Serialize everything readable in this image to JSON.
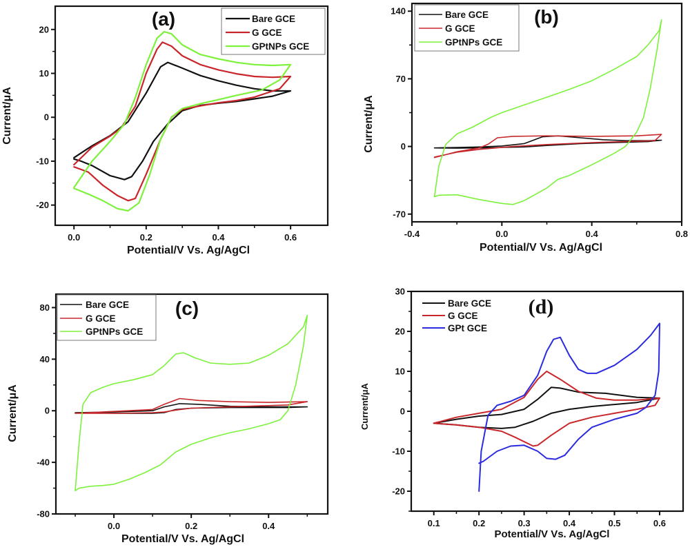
{
  "figure": {
    "description": "Cyclic voltammograms of Bare GCE, G GCE and GPt/GPtNPs GCE in four panels"
  },
  "colors": {
    "bare": "#111111",
    "g": "#c8262a",
    "gptnps": "#7cf23a",
    "gpt": "#2a2adf"
  },
  "chart_data": [
    {
      "panel": "(a)",
      "type": "line",
      "xlabel": "Potential/V Vs. Ag/AgCl",
      "ylabel": "Current/μA",
      "xlim": [
        -0.052,
        0.703
      ],
      "ylim": [
        -24.6,
        25.3
      ],
      "xticks": [
        0.0,
        0.2,
        0.4,
        0.6
      ],
      "xtick_labels": [
        "0.0",
        "0.2",
        "0.4",
        "0.6"
      ],
      "xminor": [
        0.1,
        0.3,
        0.5
      ],
      "yticks": [
        20,
        10,
        0,
        -10,
        -20
      ],
      "ytick_labels": [
        "20",
        "10",
        "0",
        "-10",
        "-20"
      ],
      "yminor": [
        15,
        5,
        -5,
        -15
      ],
      "legend": {
        "placement": "top-right",
        "boxed": true,
        "entries": [
          "Bare GCE",
          "G GCE",
          "GPtNPs GCE"
        ]
      },
      "series": [
        {
          "name": "Bare GCE",
          "color_key": "bare",
          "x": [
            0.0,
            0.05,
            0.1,
            0.15,
            0.2,
            0.24,
            0.26,
            0.3,
            0.35,
            0.4,
            0.45,
            0.5,
            0.55,
            0.6,
            0.55,
            0.5,
            0.45,
            0.4,
            0.35,
            0.3,
            0.28,
            0.26,
            0.22,
            0.19,
            0.16,
            0.14,
            0.1,
            0.05,
            0.02,
            0.0
          ],
          "y": [
            -9.2,
            -6.5,
            -4.2,
            -1.0,
            5.5,
            11.5,
            12.5,
            11.2,
            9.5,
            8.3,
            7.3,
            6.5,
            6.0,
            6.0,
            4.8,
            4.2,
            3.6,
            3.2,
            2.7,
            1.5,
            0.0,
            -1.5,
            -5.5,
            -10.0,
            -13.5,
            -14.2,
            -13.3,
            -11.0,
            -10.0,
            -9.5
          ]
        },
        {
          "name": "G GCE",
          "color_key": "g",
          "x": [
            0.0,
            0.05,
            0.1,
            0.13,
            0.17,
            0.2,
            0.23,
            0.245,
            0.27,
            0.3,
            0.35,
            0.4,
            0.45,
            0.5,
            0.55,
            0.6,
            0.57,
            0.5,
            0.45,
            0.4,
            0.35,
            0.3,
            0.27,
            0.24,
            0.2,
            0.17,
            0.15,
            0.12,
            0.08,
            0.04,
            0.0
          ],
          "y": [
            -10.8,
            -6.8,
            -4.3,
            -2.5,
            2.5,
            10.0,
            15.5,
            17.1,
            16.2,
            14.0,
            12.0,
            10.8,
            9.9,
            9.3,
            9.1,
            9.3,
            6.5,
            4.6,
            3.8,
            3.3,
            2.6,
            1.8,
            0.0,
            -5.0,
            -13.0,
            -18.5,
            -19.0,
            -17.8,
            -15.5,
            -12.5,
            -11.3
          ]
        },
        {
          "name": "GPtNPs GCE",
          "color_key": "gptnps",
          "x": [
            0.0,
            0.05,
            0.1,
            0.14,
            0.17,
            0.2,
            0.23,
            0.25,
            0.27,
            0.3,
            0.35,
            0.4,
            0.45,
            0.5,
            0.55,
            0.6,
            0.57,
            0.52,
            0.45,
            0.4,
            0.35,
            0.3,
            0.27,
            0.24,
            0.21,
            0.18,
            0.15,
            0.12,
            0.08,
            0.04,
            0.01,
            0.0
          ],
          "y": [
            -16.0,
            -10.0,
            -5.5,
            -1.5,
            4.5,
            12.0,
            18.0,
            19.5,
            19.0,
            16.5,
            14.3,
            13.3,
            12.5,
            12.0,
            11.8,
            12.0,
            8.5,
            6.2,
            5.0,
            4.0,
            3.1,
            2.0,
            0.0,
            -5.0,
            -13.0,
            -19.5,
            -21.3,
            -20.8,
            -19.0,
            -17.5,
            -16.5,
            -16.2
          ]
        }
      ]
    },
    {
      "panel": "(b)",
      "type": "line",
      "xlabel": "Potential/V Vs. Ag/AgCl",
      "ylabel": "Current/μA",
      "xlim": [
        -0.4,
        0.8
      ],
      "ylim": [
        -78,
        148
      ],
      "xticks": [
        -0.4,
        0.0,
        0.4,
        0.8
      ],
      "xtick_labels": [
        "-0.4",
        "0.0",
        "0.4",
        "0.8"
      ],
      "xminor": [
        -0.2,
        0.2,
        0.6
      ],
      "yticks": [
        140,
        70,
        0,
        -70
      ],
      "ytick_labels": [
        "140",
        "70",
        "0",
        "-70"
      ],
      "yminor": [
        105,
        35,
        -35
      ],
      "legend": {
        "placement": "top-left",
        "boxed": true,
        "entries": [
          "Bare GCE",
          "G GCE",
          "GPtNPs GCE"
        ]
      },
      "series": [
        {
          "name": "Bare GCE",
          "color_key": "bare",
          "x": [
            -0.3,
            -0.2,
            -0.1,
            0.0,
            0.1,
            0.18,
            0.25,
            0.35,
            0.45,
            0.55,
            0.65,
            0.71,
            0.65,
            0.5,
            0.35,
            0.2,
            0.1,
            0.0,
            -0.1,
            -0.2,
            -0.3
          ],
          "y": [
            -1.5,
            -1.0,
            -0.5,
            0.5,
            3.0,
            10.0,
            11.0,
            9.0,
            7.0,
            6.0,
            6.0,
            6.5,
            5.0,
            4.0,
            3.0,
            1.0,
            -0.5,
            -1.0,
            -1.5,
            -1.8,
            -1.5
          ]
        },
        {
          "name": "G GCE",
          "color_key": "g",
          "x": [
            -0.3,
            -0.2,
            -0.1,
            -0.06,
            -0.02,
            0.05,
            0.2,
            0.4,
            0.6,
            0.71,
            0.68,
            0.6,
            0.4,
            0.2,
            0.05,
            -0.1,
            -0.2,
            -0.3
          ],
          "y": [
            -11.5,
            -5.5,
            -1.5,
            2.5,
            9.0,
            10.5,
            11.0,
            10.5,
            11.0,
            12.5,
            6.0,
            5.5,
            4.0,
            2.0,
            0.0,
            -3.0,
            -6.0,
            -11.0
          ]
        },
        {
          "name": "GPtNPs GCE",
          "color_key": "gptnps",
          "x": [
            -0.3,
            -0.28,
            -0.25,
            -0.2,
            -0.13,
            -0.05,
            0.0,
            0.1,
            0.2,
            0.3,
            0.4,
            0.5,
            0.6,
            0.65,
            0.7,
            0.71,
            0.69,
            0.66,
            0.63,
            0.6,
            0.55,
            0.5,
            0.4,
            0.3,
            0.25,
            0.2,
            0.1,
            0.05,
            0.0,
            -0.1,
            -0.2,
            -0.28,
            -0.3
          ],
          "y": [
            -52.0,
            -20.0,
            2.0,
            13.0,
            20.0,
            30.0,
            35.0,
            43.0,
            51.0,
            59.0,
            68.0,
            80.0,
            93.0,
            105.0,
            120.0,
            131.0,
            100.0,
            60.0,
            30.0,
            15.0,
            0.0,
            -7.0,
            -19.0,
            -30.0,
            -34.0,
            -43.0,
            -56.0,
            -60.0,
            -59.0,
            -55.0,
            -50.0,
            -50.5,
            -52.0
          ]
        }
      ]
    },
    {
      "panel": "(c)",
      "type": "line",
      "xlabel": "Potential/V Vs. Ag/AgCl",
      "ylabel": "Current/μA",
      "xlim": [
        -0.15,
        0.553
      ],
      "ylim": [
        -80,
        90.4
      ],
      "xticks": [
        0.0,
        0.2,
        0.4
      ],
      "xtick_labels": [
        "0.0",
        "0.2",
        "0.4"
      ],
      "xminor": [
        -0.1,
        0.1,
        0.3,
        0.5
      ],
      "yticks": [
        80,
        40,
        0,
        -40,
        -80
      ],
      "ytick_labels": [
        "80",
        "40",
        "0",
        "-40",
        "-80"
      ],
      "yminor": [
        60,
        20,
        -20,
        -60
      ],
      "legend": {
        "placement": "top-left",
        "boxed": true,
        "entries": [
          "Bare GCE",
          "G GCE",
          "GPtNPs GCE"
        ]
      },
      "series": [
        {
          "name": "Bare GCE",
          "color_key": "bare",
          "x": [
            -0.1,
            0.0,
            0.1,
            0.13,
            0.17,
            0.22,
            0.3,
            0.4,
            0.5,
            0.45,
            0.3,
            0.2,
            0.16,
            0.13,
            0.1,
            0.0,
            -0.1
          ],
          "y": [
            -1.5,
            -1.0,
            0.0,
            3.0,
            5.5,
            5.0,
            3.5,
            3.0,
            3.0,
            2.5,
            2.5,
            2.0,
            1.0,
            -1.5,
            -2.0,
            -2.0,
            -1.5
          ]
        },
        {
          "name": "G GCE",
          "color_key": "g",
          "x": [
            -0.1,
            0.0,
            0.1,
            0.13,
            0.17,
            0.22,
            0.3,
            0.4,
            0.5,
            0.45,
            0.3,
            0.2,
            0.16,
            0.13,
            0.1,
            0.0,
            -0.1
          ],
          "y": [
            -2.0,
            -0.5,
            1.0,
            5.0,
            9.5,
            8.0,
            7.0,
            6.5,
            7.0,
            4.5,
            3.0,
            2.0,
            0.5,
            -1.0,
            -1.5,
            -2.0,
            -2.0
          ]
        },
        {
          "name": "GPtNPs GCE",
          "color_key": "gptnps",
          "x": [
            -0.1,
            -0.09,
            -0.08,
            -0.06,
            -0.03,
            0.0,
            0.05,
            0.1,
            0.13,
            0.16,
            0.18,
            0.21,
            0.25,
            0.3,
            0.35,
            0.4,
            0.45,
            0.49,
            0.5,
            0.49,
            0.47,
            0.45,
            0.43,
            0.4,
            0.35,
            0.3,
            0.25,
            0.2,
            0.16,
            0.12,
            0.08,
            0.04,
            0.0,
            -0.03,
            -0.06,
            -0.09,
            -0.1
          ],
          "y": [
            -62.0,
            -25.0,
            5.0,
            14.0,
            18.0,
            21.0,
            24.0,
            28.0,
            35.0,
            44.0,
            45.0,
            41.0,
            37.0,
            36.0,
            37.0,
            43.0,
            52.0,
            65.0,
            74.0,
            50.0,
            20.0,
            0.0,
            -7.0,
            -10.0,
            -14.0,
            -17.0,
            -21.0,
            -26.0,
            -32.0,
            -42.0,
            -48.0,
            -53.0,
            -57.0,
            -58.0,
            -58.5,
            -60.0,
            -62.0
          ]
        }
      ]
    },
    {
      "panel": "(d)",
      "type": "line",
      "xlabel": "Potential/V Vs. Ag/AgCl",
      "ylabel": "Current/μA",
      "xlim": [
        0.05,
        0.652
      ],
      "ylim": [
        -25,
        30
      ],
      "xticks": [
        0.1,
        0.2,
        0.3,
        0.4,
        0.5,
        0.6
      ],
      "xtick_labels": [
        "0.1",
        "0.2",
        "0.3",
        "0.4",
        "0.5",
        "0.6"
      ],
      "xminor": [
        0.15,
        0.25,
        0.35,
        0.45,
        0.55
      ],
      "yticks": [
        30,
        20,
        10,
        0,
        -10,
        -20
      ],
      "ytick_labels": [
        "30",
        "20",
        "10",
        "0",
        "-10",
        "-20"
      ],
      "yminor": [
        25,
        15,
        5,
        -5,
        -15,
        -25
      ],
      "legend": {
        "placement": "top-left",
        "boxed": false,
        "entries": [
          "Bare GCE",
          "G GCE",
          "GPt GCE"
        ]
      },
      "series": [
        {
          "name": "Bare GCE",
          "color_key": "bare",
          "x": [
            0.1,
            0.15,
            0.2,
            0.25,
            0.3,
            0.33,
            0.36,
            0.38,
            0.42,
            0.48,
            0.55,
            0.6,
            0.55,
            0.45,
            0.4,
            0.36,
            0.32,
            0.28,
            0.25,
            0.2,
            0.15,
            0.1
          ],
          "y": [
            -3.0,
            -2.0,
            -1.2,
            -0.8,
            0.5,
            3.0,
            6.0,
            5.8,
            4.8,
            4.5,
            3.5,
            3.3,
            2.2,
            1.2,
            0.5,
            -0.5,
            -2.5,
            -4.0,
            -4.3,
            -4.0,
            -3.4,
            -3.0
          ]
        },
        {
          "name": "G GCE",
          "color_key": "g",
          "x": [
            0.1,
            0.15,
            0.2,
            0.25,
            0.3,
            0.33,
            0.35,
            0.38,
            0.42,
            0.46,
            0.5,
            0.55,
            0.6,
            0.59,
            0.55,
            0.5,
            0.45,
            0.4,
            0.36,
            0.33,
            0.32,
            0.28,
            0.25,
            0.2,
            0.15,
            0.1
          ],
          "y": [
            -3.0,
            -1.5,
            -0.5,
            0.5,
            3.5,
            8.0,
            10.0,
            8.0,
            5.0,
            3.3,
            2.8,
            2.8,
            3.3,
            1.5,
            0.5,
            -0.5,
            -1.5,
            -3.0,
            -6.0,
            -8.5,
            -8.7,
            -6.5,
            -5.0,
            -4.0,
            -3.4,
            -3.0
          ]
        },
        {
          "name": "GPt GCE",
          "color_key": "gpt",
          "x": [
            0.2,
            0.205,
            0.22,
            0.24,
            0.27,
            0.3,
            0.33,
            0.35,
            0.365,
            0.38,
            0.4,
            0.42,
            0.44,
            0.46,
            0.5,
            0.55,
            0.58,
            0.6,
            0.598,
            0.59,
            0.57,
            0.55,
            0.5,
            0.45,
            0.42,
            0.39,
            0.37,
            0.35,
            0.33,
            0.3,
            0.27,
            0.24,
            0.21,
            0.2
          ],
          "y": [
            -20.0,
            -10.0,
            -1.0,
            1.5,
            2.5,
            4.0,
            9.0,
            15.0,
            18.0,
            18.5,
            14.0,
            10.5,
            9.5,
            9.5,
            11.5,
            15.5,
            19.0,
            22.0,
            10.0,
            4.0,
            1.0,
            -0.5,
            -2.0,
            -4.0,
            -7.0,
            -11.0,
            -12.0,
            -11.8,
            -10.0,
            -8.5,
            -8.7,
            -10.0,
            -12.5,
            -13.0
          ]
        }
      ]
    }
  ]
}
